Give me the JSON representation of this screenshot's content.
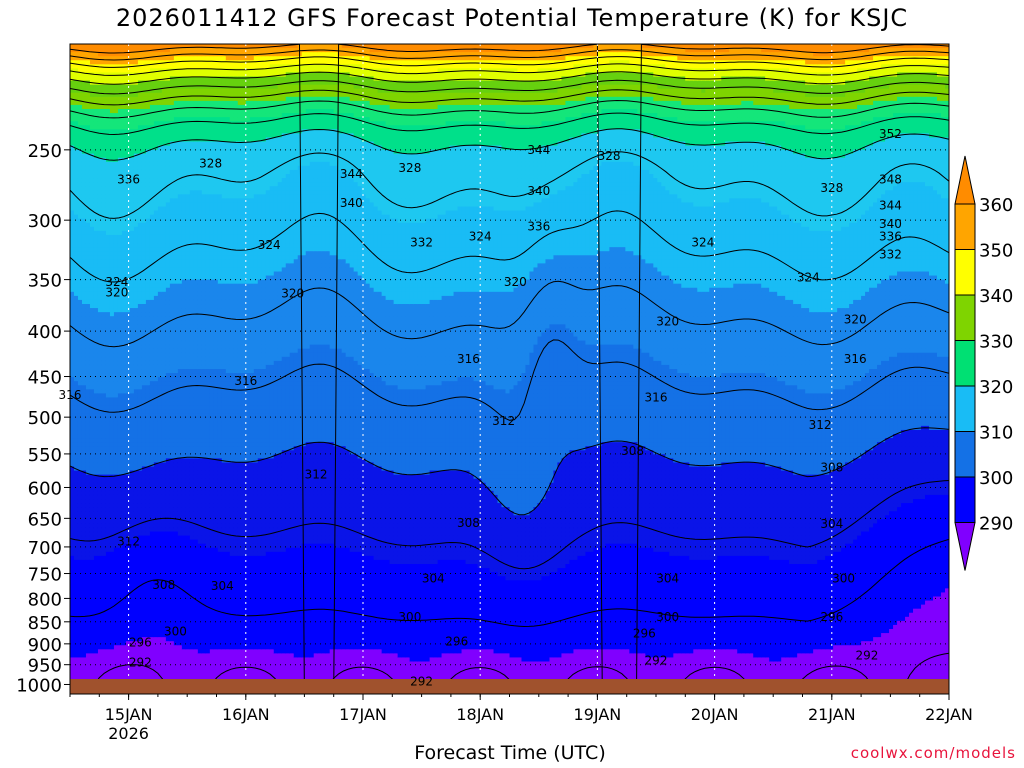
{
  "title": "2026011412 GFS Forecast Potential Temperature (K) for KSJC",
  "credit": "coolwx.com/models",
  "chart_data": {
    "type": "contour",
    "title": "2026011412 GFS Forecast Potential Temperature (K) for KSJC",
    "xlabel": "Forecast Time (UTC)",
    "ylabel": "",
    "x_ticks": [
      "15JAN",
      "16JAN",
      "17JAN",
      "18JAN",
      "19JAN",
      "20JAN",
      "21JAN",
      "22JAN"
    ],
    "x_year_label": "2026",
    "xlim_days": [
      14.5,
      22.0
    ],
    "y_ticks": [
      250,
      300,
      350,
      400,
      450,
      500,
      550,
      600,
      650,
      700,
      750,
      800,
      850,
      900,
      950,
      1000
    ],
    "y_axis": "pressure (log scale, inverted)",
    "ylim": [
      1025,
      190
    ],
    "colorbar": {
      "ticks": [
        360,
        350,
        340,
        330,
        320,
        310,
        300,
        290
      ],
      "colors": [
        "#ff8c00",
        "#ffa500",
        "#ffff00",
        "#7fd400",
        "#00e073",
        "#19bcf5",
        "#1471e6",
        "#0000ff",
        "#8000ff"
      ]
    },
    "contour_labels": [
      {
        "time": 15.0,
        "p": 270,
        "value": 336
      },
      {
        "time": 16.9,
        "p": 266,
        "value": 344
      },
      {
        "time": 16.9,
        "p": 287,
        "value": 340
      },
      {
        "time": 17.5,
        "p": 318,
        "value": 332
      },
      {
        "time": 18.5,
        "p": 305,
        "value": 336
      },
      {
        "time": 18.5,
        "p": 250,
        "value": 344
      },
      {
        "time": 18.5,
        "p": 278,
        "value": 340
      },
      {
        "time": 21.5,
        "p": 240,
        "value": 352
      },
      {
        "time": 21.5,
        "p": 270,
        "value": 348
      },
      {
        "time": 21.5,
        "p": 289,
        "value": 344
      },
      {
        "time": 21.5,
        "p": 303,
        "value": 340
      },
      {
        "time": 21.5,
        "p": 313,
        "value": 336
      },
      {
        "time": 21.5,
        "p": 328,
        "value": 332
      },
      {
        "time": 15.7,
        "p": 259,
        "value": 328
      },
      {
        "time": 17.4,
        "p": 262,
        "value": 328
      },
      {
        "time": 19.1,
        "p": 254,
        "value": 328
      },
      {
        "time": 21.0,
        "p": 276,
        "value": 328
      },
      {
        "time": 18.0,
        "p": 313,
        "value": 324
      },
      {
        "time": 16.2,
        "p": 320,
        "value": 324
      },
      {
        "time": 14.9,
        "p": 352,
        "value": 324
      },
      {
        "time": 19.9,
        "p": 318,
        "value": 324
      },
      {
        "time": 20.8,
        "p": 348,
        "value": 324
      },
      {
        "time": 18.3,
        "p": 352,
        "value": 320
      },
      {
        "time": 16.4,
        "p": 363,
        "value": 320
      },
      {
        "time": 14.9,
        "p": 362,
        "value": 320
      },
      {
        "time": 19.6,
        "p": 390,
        "value": 320
      },
      {
        "time": 21.2,
        "p": 388,
        "value": 320
      },
      {
        "time": 17.9,
        "p": 430,
        "value": 316
      },
      {
        "time": 16.0,
        "p": 455,
        "value": 316
      },
      {
        "time": 14.5,
        "p": 472,
        "value": 316
      },
      {
        "time": 19.5,
        "p": 475,
        "value": 316
      },
      {
        "time": 21.2,
        "p": 430,
        "value": 316
      },
      {
        "time": 18.2,
        "p": 505,
        "value": 312
      },
      {
        "time": 16.6,
        "p": 580,
        "value": 312
      },
      {
        "time": 15.0,
        "p": 690,
        "value": 312
      },
      {
        "time": 20.9,
        "p": 510,
        "value": 312
      },
      {
        "time": 19.3,
        "p": 546,
        "value": 308
      },
      {
        "time": 17.9,
        "p": 658,
        "value": 308
      },
      {
        "time": 15.3,
        "p": 773,
        "value": 308
      },
      {
        "time": 21.0,
        "p": 570,
        "value": 308
      },
      {
        "time": 17.6,
        "p": 760,
        "value": 304
      },
      {
        "time": 15.8,
        "p": 775,
        "value": 304
      },
      {
        "time": 19.6,
        "p": 760,
        "value": 304
      },
      {
        "time": 21.0,
        "p": 660,
        "value": 304
      },
      {
        "time": 17.4,
        "p": 840,
        "value": 300
      },
      {
        "time": 19.6,
        "p": 840,
        "value": 300
      },
      {
        "time": 15.4,
        "p": 872,
        "value": 300
      },
      {
        "time": 21.1,
        "p": 760,
        "value": 300
      },
      {
        "time": 15.1,
        "p": 897,
        "value": 296
      },
      {
        "time": 17.8,
        "p": 895,
        "value": 296
      },
      {
        "time": 19.4,
        "p": 876,
        "value": 296
      },
      {
        "time": 21.0,
        "p": 840,
        "value": 296
      },
      {
        "time": 15.1,
        "p": 945,
        "value": 292
      },
      {
        "time": 17.5,
        "p": 992,
        "value": 292
      },
      {
        "time": 19.5,
        "p": 940,
        "value": 292
      },
      {
        "time": 21.3,
        "p": 928,
        "value": 292
      }
    ]
  }
}
